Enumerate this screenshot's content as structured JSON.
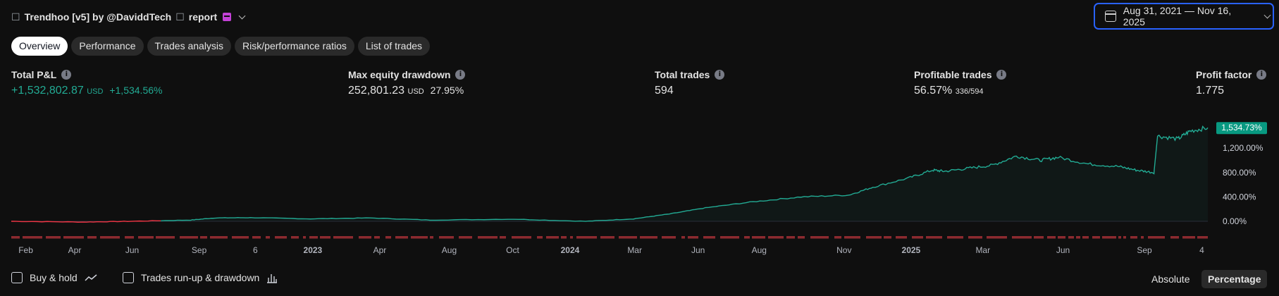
{
  "header": {
    "title": "Trendhoo [v5] by @DaviddTech",
    "glyph": "☐",
    "suffix": "report"
  },
  "date_range": "Aug 31, 2021 — Nov 16, 2025",
  "tabs": [
    {
      "label": "Overview",
      "active": true
    },
    {
      "label": "Performance",
      "active": false
    },
    {
      "label": "Trades analysis",
      "active": false
    },
    {
      "label": "Risk/performance ratios",
      "active": false
    },
    {
      "label": "List of trades",
      "active": false
    }
  ],
  "metrics": {
    "total_pl": {
      "label": "Total P&L",
      "value": "+1,532,802.87",
      "unit": "USD",
      "pct": "+1,534.56%"
    },
    "max_drawdown": {
      "label": "Max equity drawdown",
      "value": "252,801.23",
      "unit": "USD",
      "pct": "27.95%"
    },
    "total_trades": {
      "label": "Total trades",
      "value": "594"
    },
    "profitable": {
      "label": "Profitable trades",
      "value": "56.57%",
      "detail": "336/594"
    },
    "profit_factor": {
      "label": "Profit factor",
      "value": "1.775"
    }
  },
  "chart_data": {
    "type": "line",
    "current_label": "1,534.73%",
    "y_ticks": [
      {
        "label": "1,200.00%",
        "value": 1200
      },
      {
        "label": "800.00%",
        "value": 800
      },
      {
        "label": "400.00%",
        "value": 400
      },
      {
        "label": "0.00%",
        "value": 0
      }
    ],
    "x_ticks": [
      {
        "label": "Feb",
        "bold": false
      },
      {
        "label": "Apr",
        "bold": false
      },
      {
        "label": "Jun",
        "bold": false
      },
      {
        "label": "Sep",
        "bold": false
      },
      {
        "label": "6",
        "bold": false
      },
      {
        "label": "2023",
        "bold": true
      },
      {
        "label": "Apr",
        "bold": false
      },
      {
        "label": "Aug",
        "bold": false
      },
      {
        "label": "Oct",
        "bold": false
      },
      {
        "label": "2024",
        "bold": true
      },
      {
        "label": "Mar",
        "bold": false
      },
      {
        "label": "Jun",
        "bold": false
      },
      {
        "label": "Aug",
        "bold": false
      },
      {
        "label": "Nov",
        "bold": false
      },
      {
        "label": "2025",
        "bold": true
      },
      {
        "label": "Mar",
        "bold": false
      },
      {
        "label": "Jun",
        "bold": false
      },
      {
        "label": "Sep",
        "bold": false
      },
      {
        "label": "4",
        "bold": false
      }
    ],
    "x_tick_pos": [
      0.006,
      0.053,
      0.101,
      0.157,
      0.204,
      0.252,
      0.308,
      0.366,
      0.419,
      0.467,
      0.521,
      0.574,
      0.625,
      0.696,
      0.752,
      0.812,
      0.879,
      0.947,
      0.995
    ],
    "equity_x": [
      0,
      0.06,
      0.1,
      0.15,
      0.17,
      0.2,
      0.25,
      0.3,
      0.35,
      0.42,
      0.48,
      0.52,
      0.55,
      0.58,
      0.62,
      0.66,
      0.7,
      0.72,
      0.75,
      0.77,
      0.78,
      0.8,
      0.82,
      0.84,
      0.86,
      0.875,
      0.9,
      0.925,
      0.94,
      0.955,
      0.958,
      0.975,
      0.985,
      1.0
    ],
    "equity_y": [
      0,
      -12,
      0,
      20,
      55,
      60,
      40,
      55,
      20,
      35,
      0,
      40,
      120,
      220,
      320,
      400,
      430,
      560,
      710,
      840,
      820,
      870,
      920,
      1070,
      1000,
      1050,
      940,
      900,
      840,
      800,
      1400,
      1350,
      1480,
      1534.73
    ],
    "color": "#22ab94",
    "loss_color": "#f23645"
  },
  "bottom": {
    "buy_hold": "Buy & hold",
    "runup": "Trades run-up & drawdown",
    "absolute": "Absolute",
    "percentage": "Percentage"
  }
}
